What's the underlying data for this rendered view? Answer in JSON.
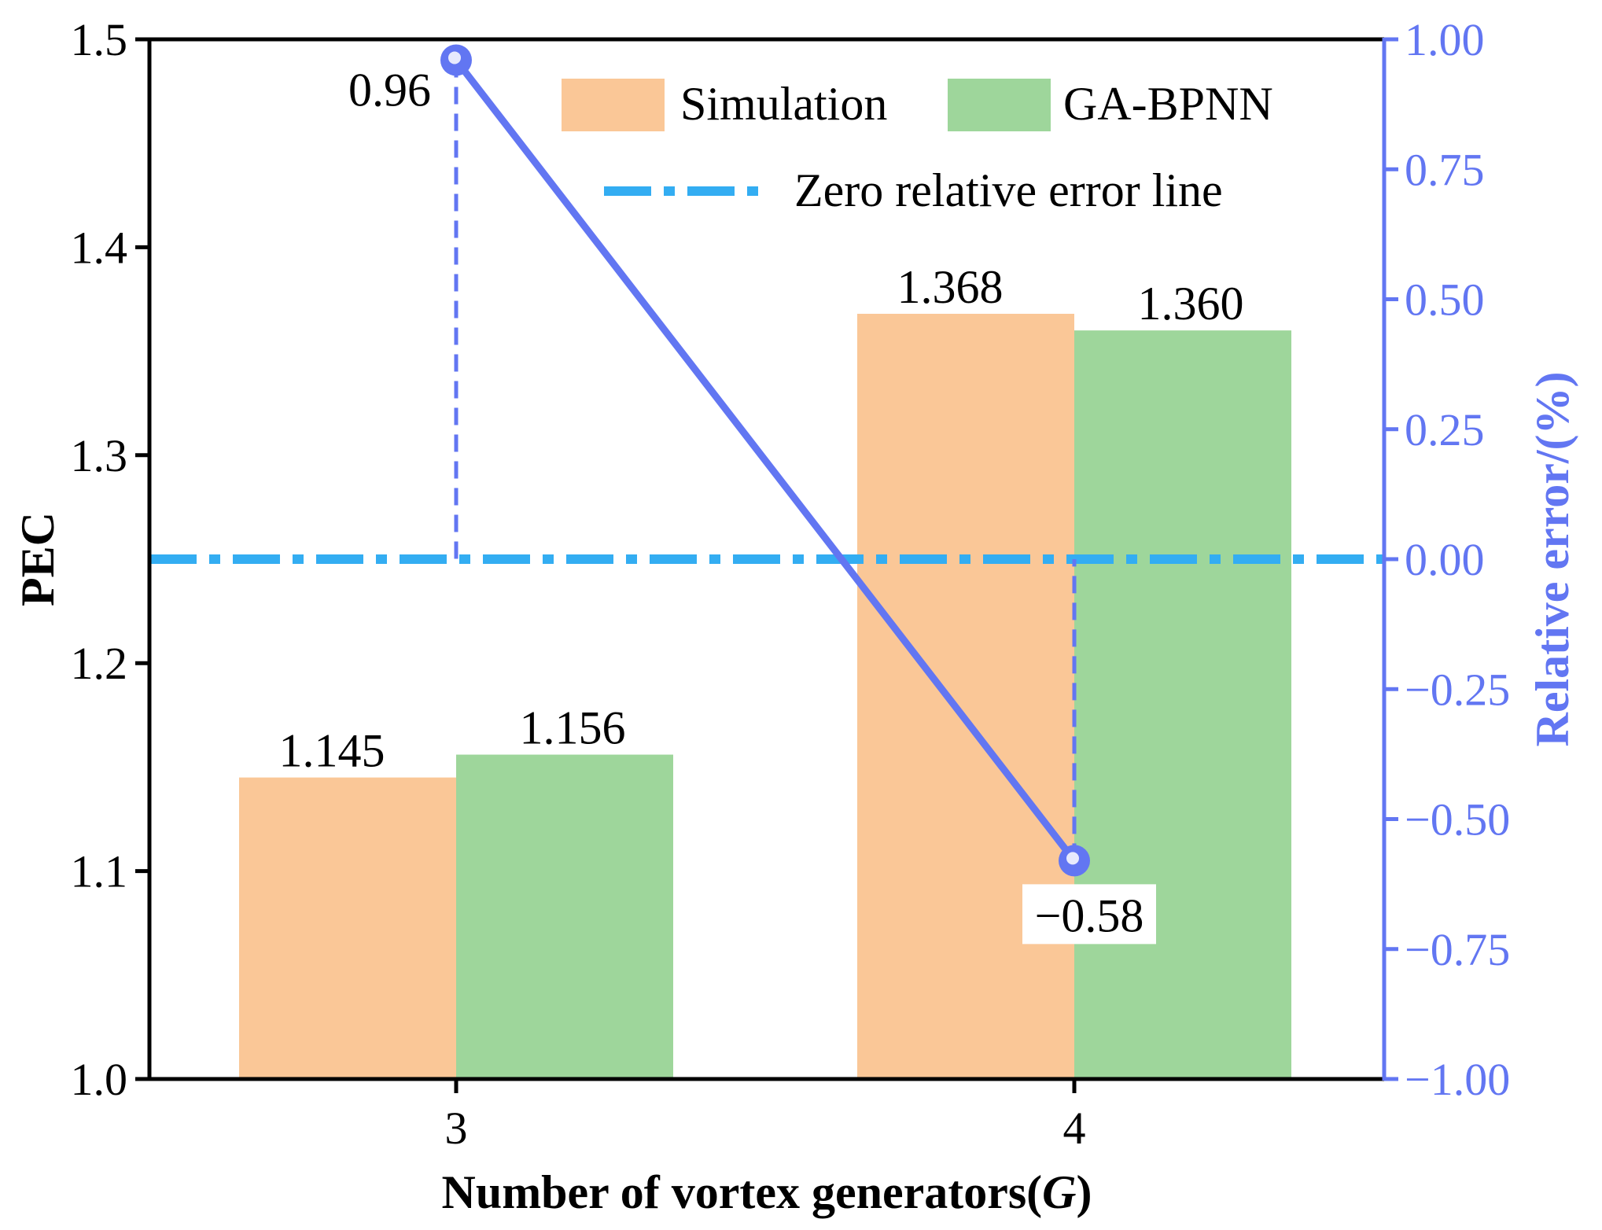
{
  "chart_data": {
    "type": "bar",
    "categories": [
      "3",
      "4"
    ],
    "series": [
      {
        "name": "Simulation",
        "values": [
          1.145,
          1.368
        ],
        "labels": [
          "1.145",
          "1.368"
        ],
        "color": "#fac797"
      },
      {
        "name": "GA-BPNN",
        "values": [
          1.156,
          1.36
        ],
        "labels": [
          "1.156",
          "1.360"
        ],
        "color": "#9ed69b"
      }
    ],
    "ylabel": "PEC",
    "xlabel": "Number of vortex generators(",
    "xlabel_var": "G",
    "xlabel_close": ")",
    "ylim": [
      1.0,
      1.5
    ],
    "y_ticks": [
      1.0,
      1.1,
      1.2,
      1.3,
      1.4,
      1.5
    ],
    "y_tick_labels": [
      "1.0",
      "1.1",
      "1.2",
      "1.3",
      "1.4",
      "1.5"
    ],
    "secondary_axis": {
      "label": "Relative error/(%)",
      "color": "#6276f2",
      "ylim": [
        -1.0,
        1.0
      ],
      "ticks": [
        -1.0,
        -0.75,
        -0.5,
        -0.25,
        0.0,
        0.25,
        0.5,
        0.75,
        1.0
      ],
      "tick_labels": [
        "−1.00",
        "−0.75",
        "−0.50",
        "−0.25",
        "0.00",
        "0.25",
        "0.50",
        "0.75",
        "1.00"
      ],
      "series": {
        "name": "Relative error",
        "values": [
          0.96,
          -0.58
        ],
        "labels": [
          "0.96",
          "−0.58"
        ]
      }
    },
    "reference_line": {
      "name": "Zero relative error line",
      "value": 0.0,
      "color": "#33adf2"
    },
    "legend": {
      "position": "top-right",
      "items": [
        "Simulation",
        "GA-BPNN",
        "Zero relative error line"
      ]
    }
  }
}
